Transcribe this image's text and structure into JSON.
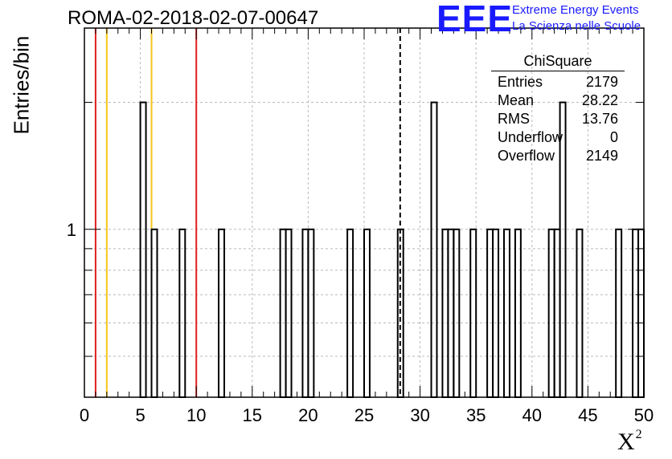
{
  "header": {
    "run_title": "ROMA-02-2018-02-07-00647",
    "logo_mark": "EEE",
    "logo_line1": "Extreme Energy Events",
    "logo_line2": "La Scienza nelle Scuole"
  },
  "stats_box": {
    "title": "ChiSquare",
    "rows": [
      {
        "label": "Entries",
        "value": "2179"
      },
      {
        "label": "Mean",
        "value": "28.22"
      },
      {
        "label": "RMS",
        "value": "13.76"
      },
      {
        "label": "Underflow",
        "value": "0"
      },
      {
        "label": "Overflow",
        "value": "2149"
      }
    ]
  },
  "chart_data": {
    "type": "histogram",
    "title": "ROMA-02-2018-02-07-00647",
    "xlabel": "X",
    "xlabel_superscript": "2",
    "ylabel": "Entries/bin",
    "xlim": [
      0,
      50
    ],
    "ylim": [
      0.4,
      3.0
    ],
    "yscale": "log",
    "grid": true,
    "bin_width": 0.5,
    "x_ticks": [
      "0",
      "5",
      "10",
      "15",
      "20",
      "25",
      "30",
      "35",
      "40",
      "45",
      "50"
    ],
    "y_tick_labels": [
      {
        "value": 1,
        "label": "1"
      }
    ],
    "bins": [
      {
        "x": 5.0,
        "y": 2
      },
      {
        "x": 6.0,
        "y": 1
      },
      {
        "x": 8.5,
        "y": 1
      },
      {
        "x": 12.0,
        "y": 1
      },
      {
        "x": 17.5,
        "y": 1
      },
      {
        "x": 18.0,
        "y": 1
      },
      {
        "x": 19.5,
        "y": 1
      },
      {
        "x": 20.0,
        "y": 1
      },
      {
        "x": 23.5,
        "y": 1
      },
      {
        "x": 25.0,
        "y": 1
      },
      {
        "x": 28.0,
        "y": 1
      },
      {
        "x": 31.0,
        "y": 2
      },
      {
        "x": 32.0,
        "y": 1
      },
      {
        "x": 32.5,
        "y": 1
      },
      {
        "x": 33.0,
        "y": 1
      },
      {
        "x": 34.5,
        "y": 1
      },
      {
        "x": 36.0,
        "y": 1
      },
      {
        "x": 36.5,
        "y": 1
      },
      {
        "x": 37.5,
        "y": 1
      },
      {
        "x": 38.5,
        "y": 1
      },
      {
        "x": 41.5,
        "y": 1
      },
      {
        "x": 42.0,
        "y": 1
      },
      {
        "x": 42.5,
        "y": 2
      },
      {
        "x": 44.0,
        "y": 1
      },
      {
        "x": 47.5,
        "y": 1
      },
      {
        "x": 49.0,
        "y": 1
      },
      {
        "x": 49.5,
        "y": 1
      }
    ],
    "vertical_lines": [
      {
        "x": 1.0,
        "color": "#e02020",
        "style": "solid"
      },
      {
        "x": 2.0,
        "color": "#f5c518",
        "style": "solid"
      },
      {
        "x": 6.0,
        "color": "#f5c518",
        "style": "solid"
      },
      {
        "x": 10.0,
        "color": "#e02020",
        "style": "solid"
      },
      {
        "x": 28.22,
        "color": "#000000",
        "style": "dashed"
      }
    ]
  }
}
